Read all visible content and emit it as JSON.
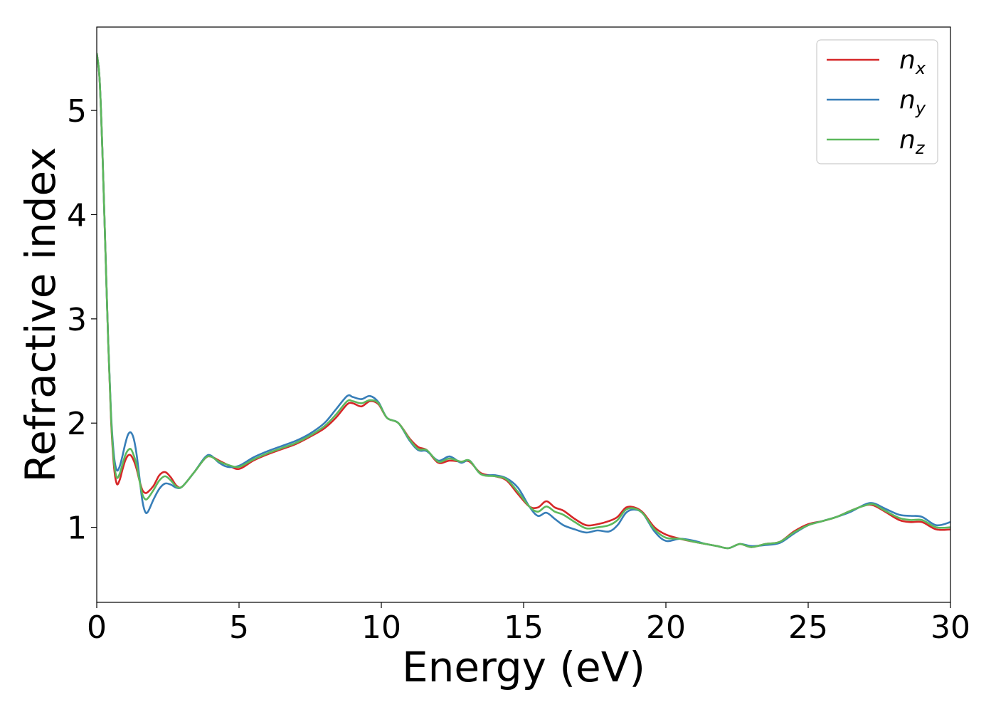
{
  "chart_data": {
    "type": "line",
    "title": "",
    "xlabel": "Energy (eV)",
    "ylabel": "Refractive index",
    "xlim": [
      0,
      30
    ],
    "ylim": [
      0.28,
      5.8
    ],
    "xticks": [
      0,
      5,
      10,
      15,
      20,
      25,
      30
    ],
    "yticks": [
      1,
      2,
      3,
      4,
      5
    ],
    "grid": false,
    "legend": "top-right",
    "series": [
      {
        "name": "n",
        "subscript": "x",
        "color": "#d62728",
        "points": [
          [
            0,
            5.55
          ],
          [
            0.1,
            5.3
          ],
          [
            0.2,
            4.6
          ],
          [
            0.3,
            3.7
          ],
          [
            0.4,
            2.8
          ],
          [
            0.5,
            2.05
          ],
          [
            0.6,
            1.6
          ],
          [
            0.7,
            1.42
          ],
          [
            0.8,
            1.45
          ],
          [
            0.9,
            1.55
          ],
          [
            1.0,
            1.64
          ],
          [
            1.1,
            1.69
          ],
          [
            1.2,
            1.69
          ],
          [
            1.3,
            1.64
          ],
          [
            1.4,
            1.56
          ],
          [
            1.5,
            1.45
          ],
          [
            1.6,
            1.36
          ],
          [
            1.7,
            1.33
          ],
          [
            1.8,
            1.34
          ],
          [
            2.0,
            1.4
          ],
          [
            2.2,
            1.5
          ],
          [
            2.4,
            1.53
          ],
          [
            2.6,
            1.48
          ],
          [
            2.8,
            1.4
          ],
          [
            3.0,
            1.39
          ],
          [
            3.4,
            1.52
          ],
          [
            3.8,
            1.66
          ],
          [
            4.0,
            1.68
          ],
          [
            4.3,
            1.64
          ],
          [
            4.6,
            1.6
          ],
          [
            5.0,
            1.56
          ],
          [
            5.5,
            1.64
          ],
          [
            6.0,
            1.7
          ],
          [
            6.5,
            1.75
          ],
          [
            7.0,
            1.8
          ],
          [
            7.5,
            1.87
          ],
          [
            8.0,
            1.95
          ],
          [
            8.4,
            2.05
          ],
          [
            8.8,
            2.18
          ],
          [
            9.0,
            2.19
          ],
          [
            9.3,
            2.16
          ],
          [
            9.6,
            2.21
          ],
          [
            9.9,
            2.18
          ],
          [
            10.2,
            2.05
          ],
          [
            10.6,
            2.0
          ],
          [
            11.0,
            1.85
          ],
          [
            11.3,
            1.77
          ],
          [
            11.6,
            1.74
          ],
          [
            12.0,
            1.62
          ],
          [
            12.4,
            1.64
          ],
          [
            12.8,
            1.63
          ],
          [
            13.1,
            1.63
          ],
          [
            13.5,
            1.52
          ],
          [
            14.0,
            1.49
          ],
          [
            14.4,
            1.45
          ],
          [
            14.8,
            1.32
          ],
          [
            15.2,
            1.2
          ],
          [
            15.5,
            1.19
          ],
          [
            15.8,
            1.25
          ],
          [
            16.1,
            1.19
          ],
          [
            16.4,
            1.16
          ],
          [
            16.8,
            1.08
          ],
          [
            17.2,
            1.02
          ],
          [
            17.6,
            1.03
          ],
          [
            18.0,
            1.06
          ],
          [
            18.3,
            1.1
          ],
          [
            18.6,
            1.19
          ],
          [
            18.9,
            1.19
          ],
          [
            19.2,
            1.14
          ],
          [
            19.6,
            1.0
          ],
          [
            20.0,
            0.93
          ],
          [
            20.5,
            0.89
          ],
          [
            21.0,
            0.86
          ],
          [
            21.4,
            0.84
          ],
          [
            21.8,
            0.82
          ],
          [
            22.2,
            0.8
          ],
          [
            22.6,
            0.84
          ],
          [
            23.0,
            0.81
          ],
          [
            23.5,
            0.84
          ],
          [
            24.0,
            0.86
          ],
          [
            24.5,
            0.96
          ],
          [
            25.0,
            1.03
          ],
          [
            25.5,
            1.06
          ],
          [
            26.0,
            1.1
          ],
          [
            26.5,
            1.16
          ],
          [
            27.0,
            1.21
          ],
          [
            27.3,
            1.21
          ],
          [
            27.7,
            1.15
          ],
          [
            28.2,
            1.07
          ],
          [
            28.6,
            1.05
          ],
          [
            29.0,
            1.05
          ],
          [
            29.5,
            0.98
          ],
          [
            30,
            0.98
          ]
        ]
      },
      {
        "name": "n",
        "subscript": "y",
        "color": "#377eb8",
        "points": [
          [
            0,
            5.55
          ],
          [
            0.1,
            5.3
          ],
          [
            0.2,
            4.6
          ],
          [
            0.3,
            3.7
          ],
          [
            0.4,
            2.8
          ],
          [
            0.5,
            2.1
          ],
          [
            0.6,
            1.7
          ],
          [
            0.7,
            1.55
          ],
          [
            0.8,
            1.58
          ],
          [
            0.9,
            1.68
          ],
          [
            1.0,
            1.8
          ],
          [
            1.1,
            1.89
          ],
          [
            1.2,
            1.91
          ],
          [
            1.3,
            1.85
          ],
          [
            1.4,
            1.7
          ],
          [
            1.5,
            1.48
          ],
          [
            1.6,
            1.26
          ],
          [
            1.7,
            1.15
          ],
          [
            1.8,
            1.15
          ],
          [
            2.0,
            1.27
          ],
          [
            2.2,
            1.37
          ],
          [
            2.4,
            1.42
          ],
          [
            2.6,
            1.41
          ],
          [
            2.8,
            1.38
          ],
          [
            3.0,
            1.39
          ],
          [
            3.4,
            1.52
          ],
          [
            3.8,
            1.67
          ],
          [
            4.0,
            1.69
          ],
          [
            4.3,
            1.62
          ],
          [
            4.6,
            1.58
          ],
          [
            5.0,
            1.59
          ],
          [
            5.5,
            1.67
          ],
          [
            6.0,
            1.73
          ],
          [
            6.5,
            1.78
          ],
          [
            7.0,
            1.83
          ],
          [
            7.5,
            1.9
          ],
          [
            8.0,
            2.0
          ],
          [
            8.4,
            2.13
          ],
          [
            8.8,
            2.26
          ],
          [
            9.0,
            2.25
          ],
          [
            9.3,
            2.23
          ],
          [
            9.6,
            2.26
          ],
          [
            9.9,
            2.2
          ],
          [
            10.2,
            2.05
          ],
          [
            10.6,
            2.0
          ],
          [
            11.0,
            1.83
          ],
          [
            11.3,
            1.74
          ],
          [
            11.6,
            1.73
          ],
          [
            12.0,
            1.64
          ],
          [
            12.4,
            1.68
          ],
          [
            12.8,
            1.62
          ],
          [
            13.1,
            1.64
          ],
          [
            13.5,
            1.51
          ],
          [
            14.0,
            1.5
          ],
          [
            14.4,
            1.47
          ],
          [
            14.8,
            1.38
          ],
          [
            15.2,
            1.2
          ],
          [
            15.5,
            1.11
          ],
          [
            15.8,
            1.14
          ],
          [
            16.1,
            1.08
          ],
          [
            16.4,
            1.02
          ],
          [
            16.8,
            0.98
          ],
          [
            17.2,
            0.95
          ],
          [
            17.6,
            0.97
          ],
          [
            18.0,
            0.96
          ],
          [
            18.3,
            1.02
          ],
          [
            18.6,
            1.14
          ],
          [
            18.9,
            1.17
          ],
          [
            19.2,
            1.13
          ],
          [
            19.6,
            0.96
          ],
          [
            20.0,
            0.87
          ],
          [
            20.5,
            0.89
          ],
          [
            21.0,
            0.87
          ],
          [
            21.4,
            0.84
          ],
          [
            21.8,
            0.82
          ],
          [
            22.2,
            0.8
          ],
          [
            22.6,
            0.84
          ],
          [
            23.0,
            0.82
          ],
          [
            23.5,
            0.83
          ],
          [
            24.0,
            0.85
          ],
          [
            24.5,
            0.94
          ],
          [
            25.0,
            1.02
          ],
          [
            25.5,
            1.06
          ],
          [
            26.0,
            1.1
          ],
          [
            26.5,
            1.15
          ],
          [
            27.0,
            1.22
          ],
          [
            27.3,
            1.23
          ],
          [
            27.7,
            1.18
          ],
          [
            28.2,
            1.12
          ],
          [
            28.6,
            1.11
          ],
          [
            29.0,
            1.1
          ],
          [
            29.5,
            1.02
          ],
          [
            30,
            1.05
          ]
        ]
      },
      {
        "name": "n",
        "subscript": "z",
        "color": "#5cb85c",
        "points": [
          [
            0,
            5.55
          ],
          [
            0.1,
            5.3
          ],
          [
            0.2,
            4.6
          ],
          [
            0.3,
            3.7
          ],
          [
            0.4,
            2.8
          ],
          [
            0.5,
            2.07
          ],
          [
            0.6,
            1.64
          ],
          [
            0.7,
            1.48
          ],
          [
            0.8,
            1.51
          ],
          [
            0.9,
            1.6
          ],
          [
            1.0,
            1.69
          ],
          [
            1.1,
            1.74
          ],
          [
            1.2,
            1.75
          ],
          [
            1.3,
            1.69
          ],
          [
            1.4,
            1.6
          ],
          [
            1.5,
            1.45
          ],
          [
            1.6,
            1.32
          ],
          [
            1.7,
            1.27
          ],
          [
            1.8,
            1.28
          ],
          [
            2.0,
            1.36
          ],
          [
            2.2,
            1.45
          ],
          [
            2.4,
            1.49
          ],
          [
            2.6,
            1.45
          ],
          [
            2.8,
            1.39
          ],
          [
            3.0,
            1.39
          ],
          [
            3.4,
            1.52
          ],
          [
            3.8,
            1.66
          ],
          [
            4.0,
            1.68
          ],
          [
            4.3,
            1.63
          ],
          [
            4.6,
            1.6
          ],
          [
            5.0,
            1.58
          ],
          [
            5.5,
            1.65
          ],
          [
            6.0,
            1.71
          ],
          [
            6.5,
            1.76
          ],
          [
            7.0,
            1.81
          ],
          [
            7.5,
            1.88
          ],
          [
            8.0,
            1.97
          ],
          [
            8.4,
            2.08
          ],
          [
            8.8,
            2.21
          ],
          [
            9.0,
            2.21
          ],
          [
            9.3,
            2.19
          ],
          [
            9.6,
            2.22
          ],
          [
            9.9,
            2.19
          ],
          [
            10.2,
            2.05
          ],
          [
            10.6,
            2.0
          ],
          [
            11.0,
            1.84
          ],
          [
            11.3,
            1.75
          ],
          [
            11.6,
            1.74
          ],
          [
            12.0,
            1.63
          ],
          [
            12.4,
            1.66
          ],
          [
            12.8,
            1.63
          ],
          [
            13.1,
            1.64
          ],
          [
            13.5,
            1.51
          ],
          [
            14.0,
            1.49
          ],
          [
            14.4,
            1.46
          ],
          [
            14.8,
            1.34
          ],
          [
            15.2,
            1.2
          ],
          [
            15.5,
            1.15
          ],
          [
            15.8,
            1.2
          ],
          [
            16.1,
            1.15
          ],
          [
            16.4,
            1.12
          ],
          [
            16.8,
            1.05
          ],
          [
            17.2,
            0.99
          ],
          [
            17.6,
            1.0
          ],
          [
            18.0,
            1.02
          ],
          [
            18.3,
            1.07
          ],
          [
            18.6,
            1.17
          ],
          [
            18.9,
            1.18
          ],
          [
            19.2,
            1.13
          ],
          [
            19.6,
            0.98
          ],
          [
            20.0,
            0.9
          ],
          [
            20.5,
            0.89
          ],
          [
            21.0,
            0.86
          ],
          [
            21.4,
            0.84
          ],
          [
            21.8,
            0.82
          ],
          [
            22.2,
            0.8
          ],
          [
            22.6,
            0.84
          ],
          [
            23.0,
            0.81
          ],
          [
            23.5,
            0.84
          ],
          [
            24.0,
            0.86
          ],
          [
            24.5,
            0.95
          ],
          [
            25.0,
            1.02
          ],
          [
            25.5,
            1.06
          ],
          [
            26.0,
            1.1
          ],
          [
            26.5,
            1.16
          ],
          [
            27.0,
            1.21
          ],
          [
            27.3,
            1.22
          ],
          [
            27.7,
            1.16
          ],
          [
            28.2,
            1.09
          ],
          [
            28.6,
            1.07
          ],
          [
            29.0,
            1.07
          ],
          [
            29.5,
            1.0
          ],
          [
            30,
            1.0
          ]
        ]
      }
    ]
  }
}
